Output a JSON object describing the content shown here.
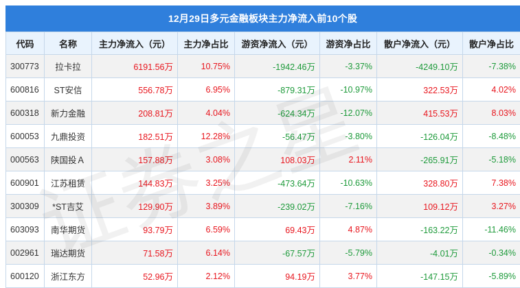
{
  "title": "12月29日多元金融板块主力净流入前10个股",
  "colors": {
    "header_bg": "#2f7fdc",
    "positive": "#e8161e",
    "negative": "#1d9a3a",
    "col_header_bg": "#e9f3fd"
  },
  "columns": [
    "代码",
    "名称",
    "主力净流入（元）",
    "主力净占比",
    "游资净流入（元）",
    "游资净占比",
    "散户净流入（元）",
    "散户净占比"
  ],
  "rows": [
    {
      "code": "300773",
      "name": "拉卡拉",
      "main_in": "6191.56万",
      "main_pct": "10.75%",
      "hot_in": "-1942.46万",
      "hot_pct": "-3.37%",
      "retail_in": "-4249.10万",
      "retail_pct": "-7.38%"
    },
    {
      "code": "600816",
      "name": "ST安信",
      "main_in": "556.78万",
      "main_pct": "6.95%",
      "hot_in": "-879.31万",
      "hot_pct": "-10.97%",
      "retail_in": "322.53万",
      "retail_pct": "4.02%"
    },
    {
      "code": "600318",
      "name": "新力金融",
      "main_in": "208.81万",
      "main_pct": "4.04%",
      "hot_in": "-624.34万",
      "hot_pct": "-12.07%",
      "retail_in": "415.53万",
      "retail_pct": "8.03%"
    },
    {
      "code": "600053",
      "name": "九鼎投资",
      "main_in": "182.51万",
      "main_pct": "12.28%",
      "hot_in": "-56.47万",
      "hot_pct": "-3.80%",
      "retail_in": "-126.04万",
      "retail_pct": "-8.48%"
    },
    {
      "code": "000563",
      "name": "陕国投Ａ",
      "main_in": "157.88万",
      "main_pct": "3.08%",
      "hot_in": "108.03万",
      "hot_pct": "2.11%",
      "retail_in": "-265.91万",
      "retail_pct": "-5.18%"
    },
    {
      "code": "600901",
      "name": "江苏租赁",
      "main_in": "144.83万",
      "main_pct": "3.25%",
      "hot_in": "-473.64万",
      "hot_pct": "-10.63%",
      "retail_in": "328.80万",
      "retail_pct": "7.38%"
    },
    {
      "code": "300309",
      "name": "*ST吉艾",
      "main_in": "129.90万",
      "main_pct": "3.89%",
      "hot_in": "-239.02万",
      "hot_pct": "-7.16%",
      "retail_in": "109.12万",
      "retail_pct": "3.27%"
    },
    {
      "code": "603093",
      "name": "南华期货",
      "main_in": "93.79万",
      "main_pct": "6.59%",
      "hot_in": "69.43万",
      "hot_pct": "4.87%",
      "retail_in": "-163.22万",
      "retail_pct": "-11.46%"
    },
    {
      "code": "002961",
      "name": "瑞达期货",
      "main_in": "71.58万",
      "main_pct": "6.14%",
      "hot_in": "-67.57万",
      "hot_pct": "-5.79%",
      "retail_in": "-4.01万",
      "retail_pct": "-0.34%"
    },
    {
      "code": "600120",
      "name": "浙江东方",
      "main_in": "52.96万",
      "main_pct": "2.12%",
      "hot_in": "94.19万",
      "hot_pct": "3.77%",
      "retail_in": "-147.15万",
      "retail_pct": "-5.89%"
    }
  ],
  "watermark": "证券之星"
}
